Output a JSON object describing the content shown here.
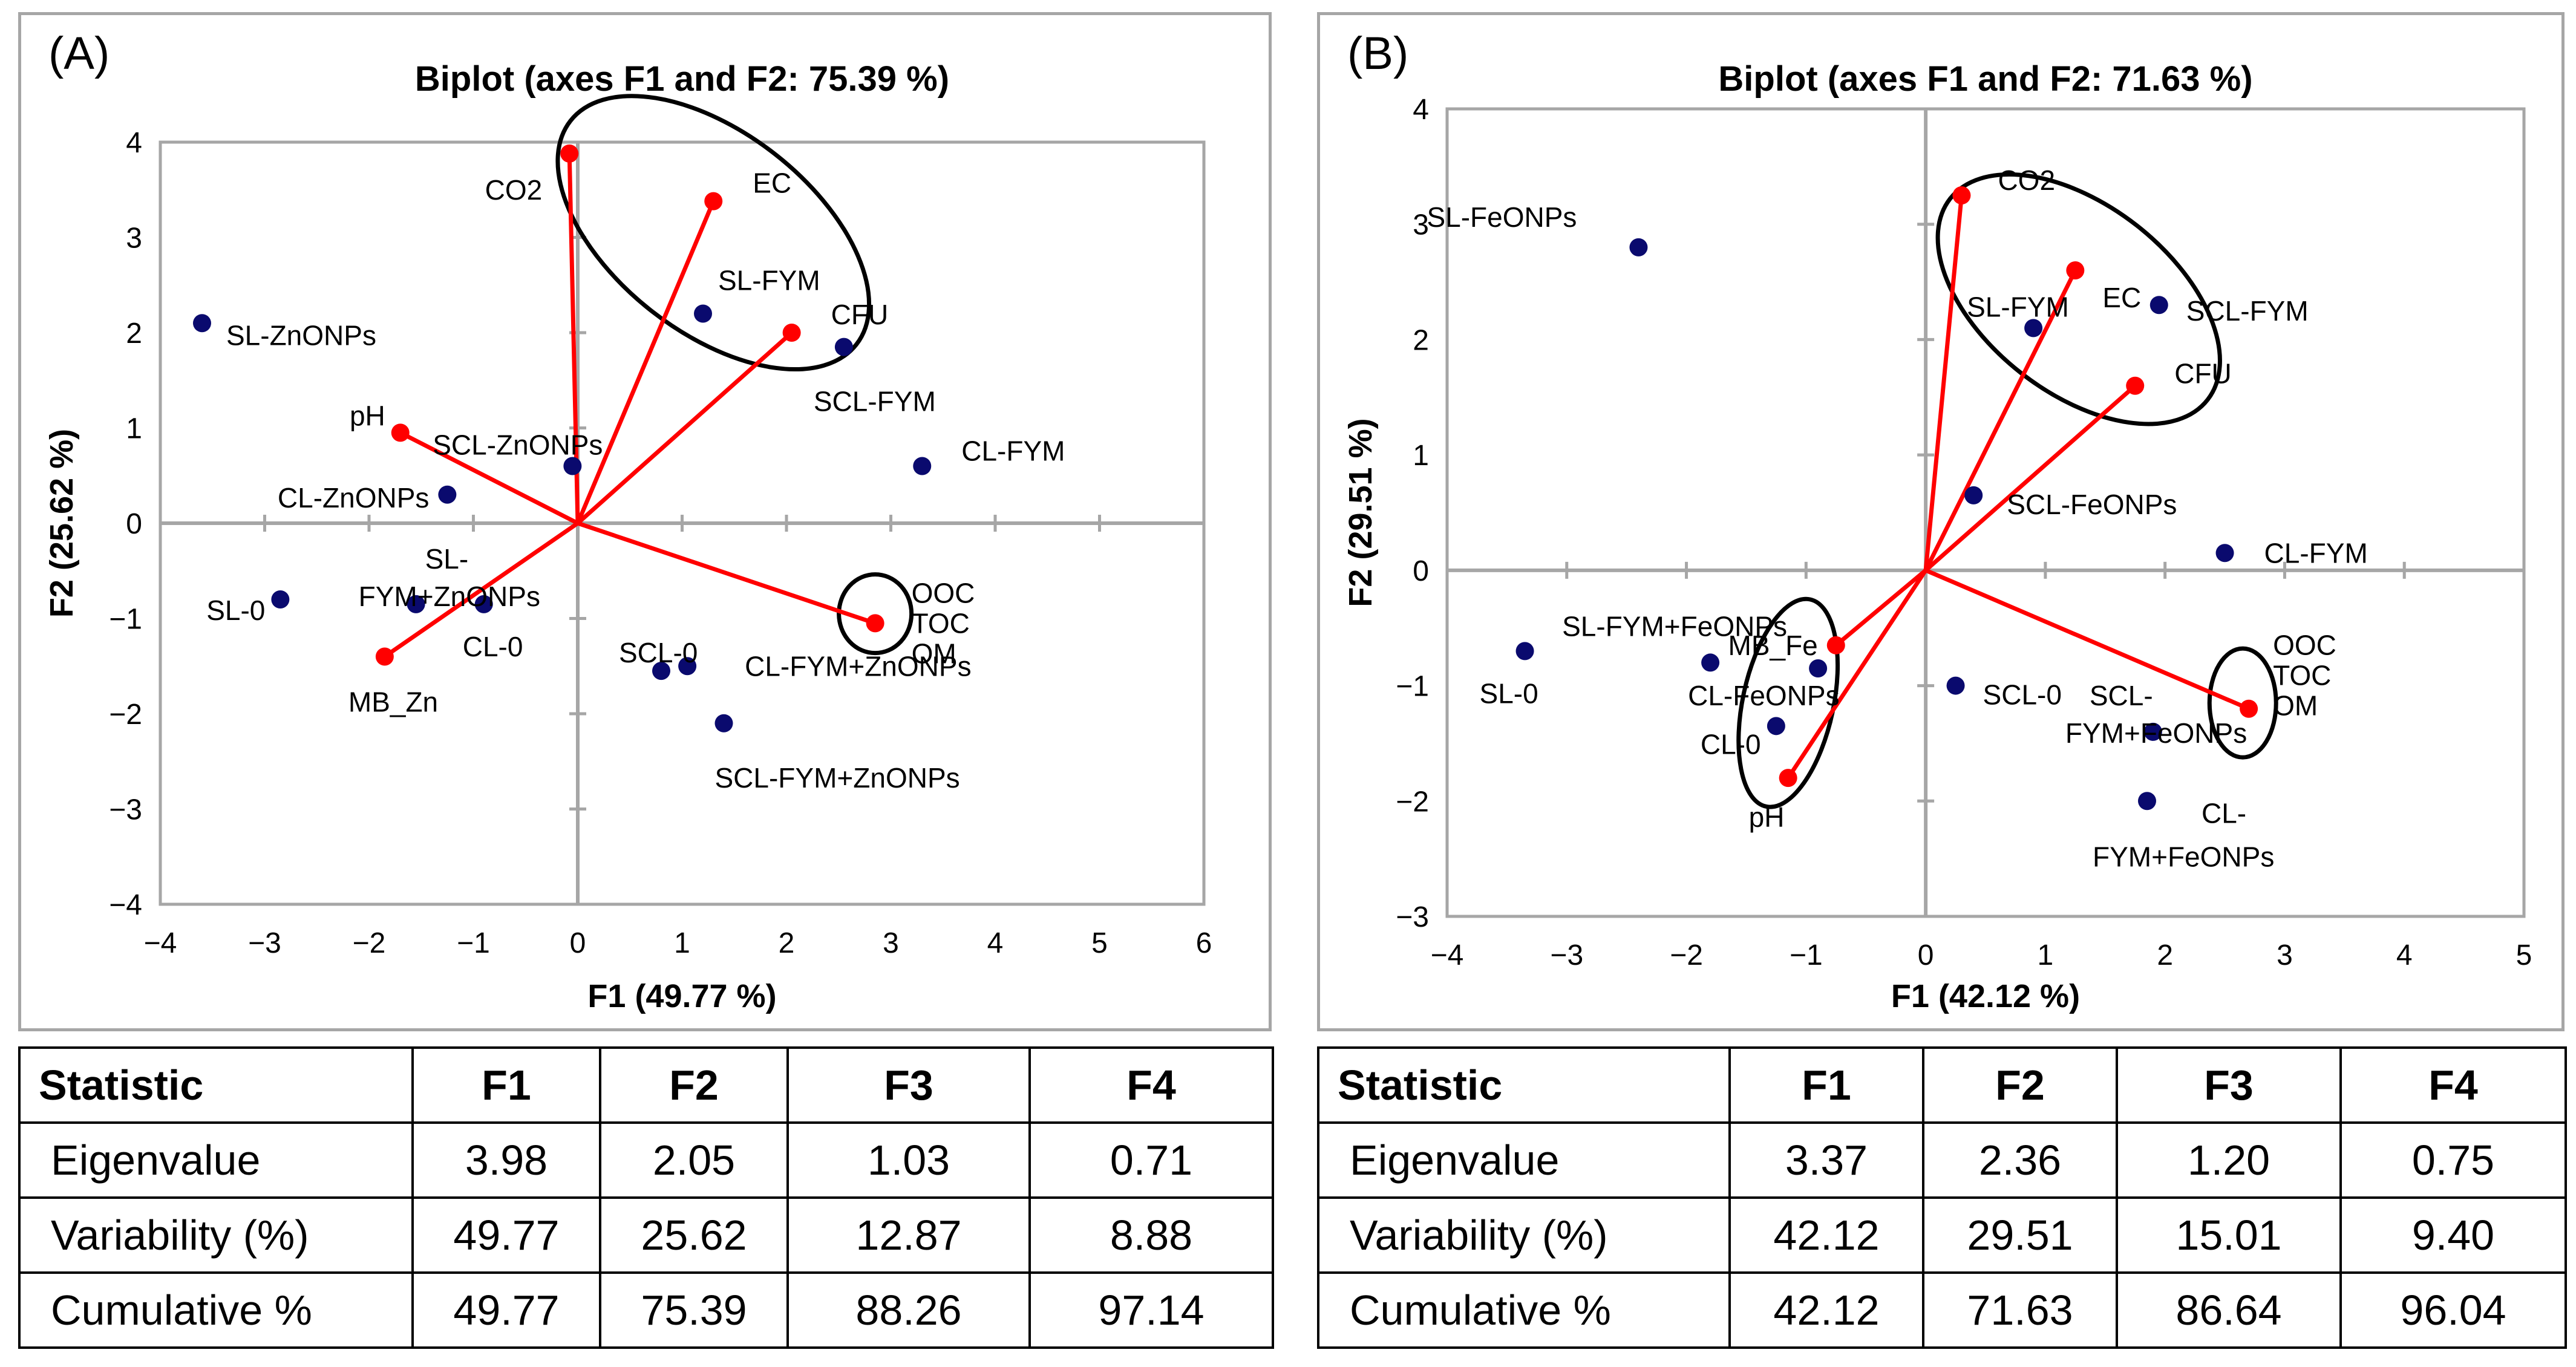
{
  "chart_data": [
    {
      "panel_label": "(A)",
      "type": "scatter",
      "title": "Biplot (axes F1 and F2: 75.39 %)",
      "xlabel": "F1 (49.77 %)",
      "ylabel": "F2 (25.62 %)",
      "xlim": [
        -4,
        6
      ],
      "ylim": [
        -4,
        4
      ],
      "x_ticks": [
        -4,
        -3,
        -2,
        -1,
        0,
        1,
        2,
        3,
        4,
        5,
        6
      ],
      "y_ticks": [
        -4,
        -3,
        -2,
        -1,
        0,
        1,
        2,
        3,
        4
      ],
      "observations": [
        {
          "label": "SL-ZnONPs",
          "x": -3.6,
          "y": 2.1
        },
        {
          "label": "CL-ZnONPs",
          "x": -1.25,
          "y": 0.3
        },
        {
          "label": "SCL-ZnONPs",
          "x": -0.05,
          "y": 0.6
        },
        {
          "label": "SL-FYM",
          "x": 1.2,
          "y": 2.2
        },
        {
          "label": "SCL-FYM",
          "x": 2.55,
          "y": 1.85
        },
        {
          "label": "CL-FYM",
          "x": 3.3,
          "y": 0.6
        },
        {
          "label": "SL-0",
          "x": -2.85,
          "y": -0.8
        },
        {
          "label": "SL-FYM+ZnONPs",
          "x": -1.55,
          "y": -0.85
        },
        {
          "label": "CL-0",
          "x": -0.9,
          "y": -0.85
        },
        {
          "label": "SCL-0",
          "x": 0.8,
          "y": -1.55
        },
        {
          "label": "CL-FYM+ZnONPs",
          "x": 1.05,
          "y": -1.5
        },
        {
          "label": "SCL-FYM+ZnONPs",
          "x": 1.4,
          "y": -2.1
        }
      ],
      "variables": [
        {
          "label": "CO2",
          "x": -0.08,
          "y": 3.88
        },
        {
          "label": "EC",
          "x": 1.3,
          "y": 3.38
        },
        {
          "label": "CFU",
          "x": 2.05,
          "y": 2.0
        },
        {
          "label": "pH",
          "x": -1.7,
          "y": 0.95
        },
        {
          "label": "OOC TOC OM",
          "x": 2.85,
          "y": -1.05
        },
        {
          "label": "MB_Zn",
          "x": -1.85,
          "y": -1.4
        }
      ],
      "stats_table": {
        "headers": [
          "Statistic",
          "F1",
          "F2",
          "F3",
          "F4"
        ],
        "rows": [
          [
            "Eigenvalue",
            "3.98",
            "2.05",
            "1.03",
            "0.71"
          ],
          [
            "Variability (%)",
            "49.77",
            "25.62",
            "12.87",
            "8.88"
          ],
          [
            "Cumulative %",
            "49.77",
            "75.39",
            "88.26",
            "97.14"
          ]
        ]
      }
    },
    {
      "panel_label": "(B)",
      "type": "scatter",
      "title": "Biplot (axes F1 and F2: 71.63 %)",
      "xlabel": "F1 (42.12 %)",
      "ylabel": "F2 (29.51 %)",
      "xlim": [
        -4,
        5
      ],
      "ylim": [
        -3,
        4
      ],
      "x_ticks": [
        -4,
        -3,
        -2,
        -1,
        0,
        1,
        2,
        3,
        4,
        5
      ],
      "y_ticks": [
        -3,
        -2,
        -1,
        0,
        1,
        2,
        3,
        4
      ],
      "observations": [
        {
          "label": "SL-FeONPs",
          "x": -2.4,
          "y": 2.8
        },
        {
          "label": "SL-FYM",
          "x": 0.9,
          "y": 2.1
        },
        {
          "label": "SCL-FYM",
          "x": 1.95,
          "y": 2.3
        },
        {
          "label": "SCL-FeONPs",
          "x": 0.4,
          "y": 0.65
        },
        {
          "label": "CL-FYM",
          "x": 2.5,
          "y": 0.15
        },
        {
          "label": "SL-0",
          "x": -3.35,
          "y": -0.7
        },
        {
          "label": "SL-FYM+FeONPs",
          "x": -1.8,
          "y": -0.8
        },
        {
          "label": "CL-FeONPs",
          "x": -0.9,
          "y": -0.85
        },
        {
          "label": "CL-0",
          "x": -1.25,
          "y": -1.35
        },
        {
          "label": "SCL-0",
          "x": 0.25,
          "y": -1.0
        },
        {
          "label": "SCL-FYM+FeONPs",
          "x": 1.9,
          "y": -1.4
        },
        {
          "label": "CL-FYM+FeONPs",
          "x": 1.85,
          "y": -2.0
        }
      ],
      "variables": [
        {
          "label": "CO2",
          "x": 0.3,
          "y": 3.25
        },
        {
          "label": "EC",
          "x": 1.25,
          "y": 2.6
        },
        {
          "label": "CFU",
          "x": 1.75,
          "y": 1.6
        },
        {
          "label": "MB_Fe",
          "x": -0.75,
          "y": -0.65
        },
        {
          "label": "pH",
          "x": -1.15,
          "y": -1.8
        },
        {
          "label": "OOC TOC OM",
          "x": 2.7,
          "y": -1.2
        }
      ],
      "stats_table": {
        "headers": [
          "Statistic",
          "F1",
          "F2",
          "F3",
          "F4"
        ],
        "rows": [
          [
            "Eigenvalue",
            "3.37",
            "2.36",
            "1.20",
            "0.75"
          ],
          [
            "Variability (%)",
            "42.12",
            "29.51",
            "15.01",
            "9.40"
          ],
          [
            "Cumulative %",
            "42.12",
            "71.63",
            "86.64",
            "96.04"
          ]
        ]
      }
    }
  ]
}
